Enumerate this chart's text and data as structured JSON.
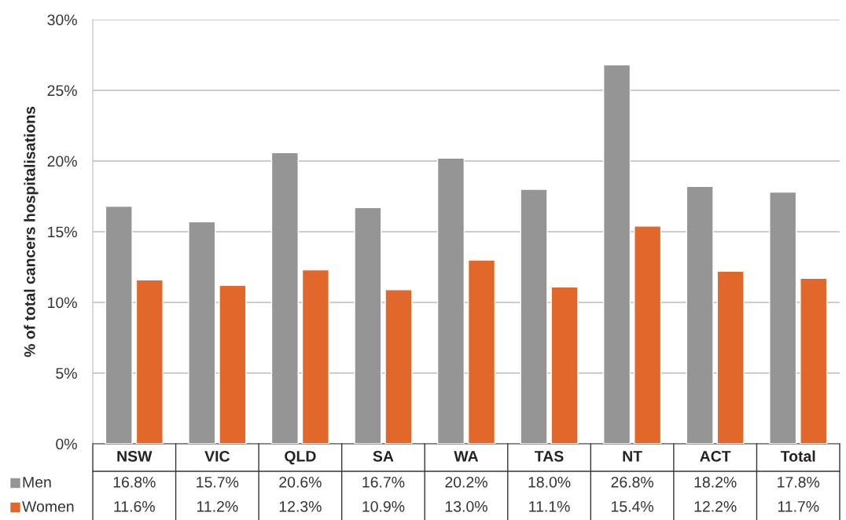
{
  "chart_data": {
    "type": "bar",
    "ylabel": "% of total cancers hospitalisations",
    "categories": [
      "NSW",
      "VIC",
      "QLD",
      "SA",
      "WA",
      "TAS",
      "NT",
      "ACT",
      "Total"
    ],
    "series": [
      {
        "name": "Men",
        "color": "#959595",
        "values": [
          16.8,
          15.7,
          20.6,
          16.7,
          20.2,
          18.0,
          26.8,
          18.2,
          17.8
        ],
        "value_labels": [
          "16.8%",
          "15.7%",
          "20.6%",
          "16.7%",
          "20.2%",
          "18.0%",
          "26.8%",
          "18.2%",
          "17.8%"
        ]
      },
      {
        "name": "Women",
        "color": "#e2672a",
        "values": [
          11.6,
          11.2,
          12.3,
          10.9,
          13.0,
          11.1,
          15.4,
          12.2,
          11.7
        ],
        "value_labels": [
          "11.6%",
          "11.2%",
          "12.3%",
          "10.9%",
          "13.0%",
          "11.1%",
          "15.4%",
          "12.2%",
          "11.7%"
        ]
      }
    ],
    "ylim": [
      0,
      30
    ],
    "yticks": [
      {
        "value": 0,
        "label": "0%"
      },
      {
        "value": 5,
        "label": "5%"
      },
      {
        "value": 10,
        "label": "10%"
      },
      {
        "value": 15,
        "label": "15%"
      },
      {
        "value": 20,
        "label": "20%"
      },
      {
        "value": 25,
        "label": "25%"
      },
      {
        "value": 30,
        "label": "30%"
      }
    ],
    "grid": "y",
    "legend": "bottom left"
  }
}
